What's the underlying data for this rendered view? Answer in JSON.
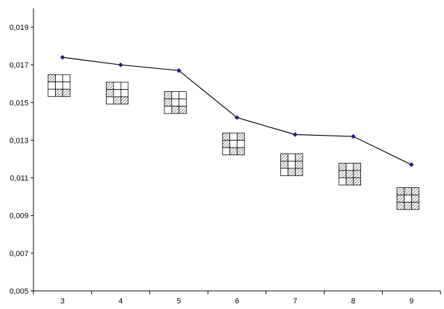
{
  "chart_data": {
    "type": "line",
    "title": "",
    "xlabel": "",
    "ylabel": "",
    "categories": [
      "3",
      "4",
      "5",
      "6",
      "7",
      "8",
      "9"
    ],
    "x": [
      3,
      4,
      5,
      6,
      7,
      8,
      9
    ],
    "values": [
      0.0174,
      0.017,
      0.0167,
      0.0142,
      0.0133,
      0.0132,
      0.0117
    ],
    "ylim": [
      0.005,
      0.02
    ],
    "yticks": [
      "0,005",
      "0,007",
      "0,009",
      "0,011",
      "0,013",
      "0,015",
      "0,017",
      "0,019"
    ],
    "xticks": [
      "3",
      "4",
      "5",
      "6",
      "7",
      "8",
      "9"
    ],
    "grid": false,
    "legend": "none",
    "line_color": "#000000",
    "marker_color": "#1a237e",
    "annotations": {
      "kind": "3x3 grid icons below each point (hatched cells shown as 1)",
      "patterns": [
        [
          1,
          0,
          0,
          0,
          0,
          0,
          0,
          1,
          1
        ],
        [
          1,
          0,
          0,
          1,
          0,
          0,
          0,
          1,
          1
        ],
        [
          1,
          0,
          0,
          1,
          0,
          0,
          0,
          1,
          1
        ],
        [
          1,
          0,
          1,
          1,
          0,
          0,
          0,
          1,
          1
        ],
        [
          1,
          0,
          1,
          1,
          0,
          1,
          0,
          1,
          1
        ],
        [
          1,
          0,
          1,
          1,
          1,
          1,
          0,
          1,
          1
        ],
        [
          1,
          1,
          1,
          1,
          0,
          1,
          1,
          1,
          1
        ]
      ],
      "y_values": [
        0.0159,
        0.0155,
        0.015,
        0.0128,
        0.0117,
        0.0112,
        0.0099
      ]
    }
  }
}
